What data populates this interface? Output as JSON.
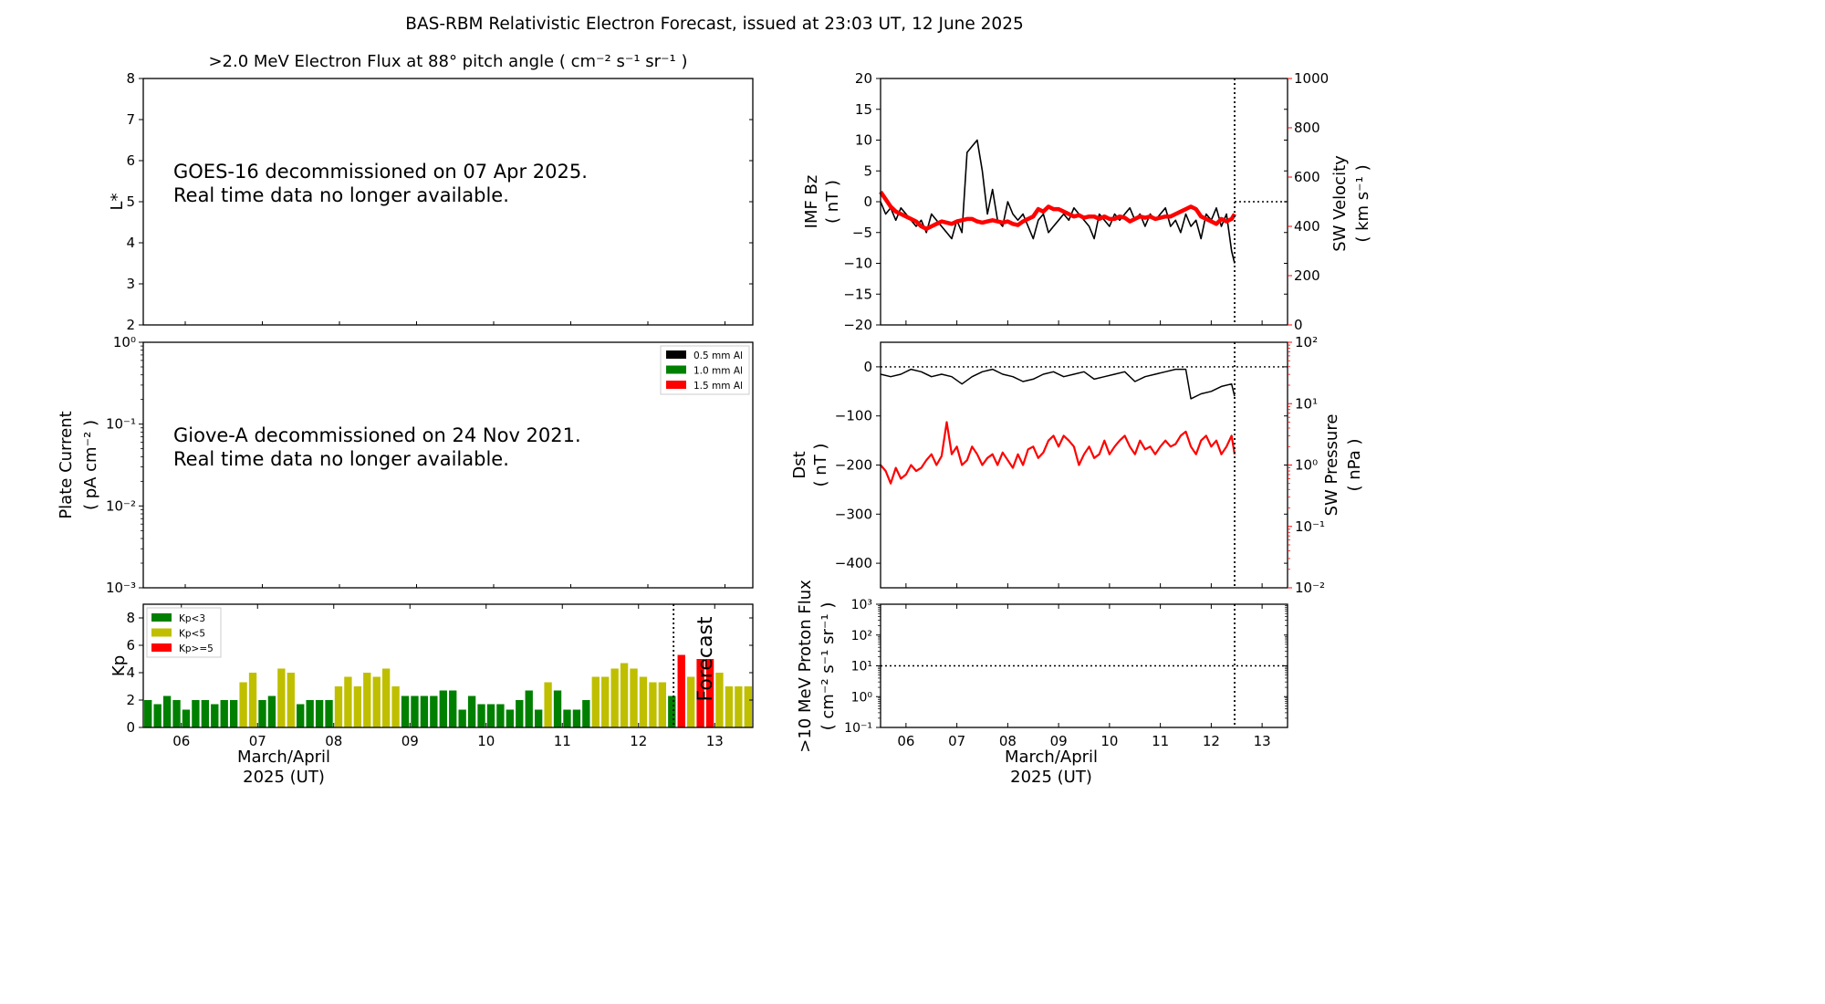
{
  "figure": {
    "title": "BAS-RBM Relativistic Electron Forecast, issued at 23:03 UT, 12 June 2025"
  },
  "chart_data": [
    {
      "id": "electron_flux",
      "type": "heatmap",
      "title": ">2.0 MeV Electron Flux at 88° pitch angle ( cm⁻² s⁻¹ sr⁻¹ )",
      "ylabel": "L*",
      "ylim": [
        2,
        8
      ],
      "yticks": [
        2,
        3,
        4,
        5,
        6,
        7,
        8
      ],
      "notice": [
        "GOES-16 decommissioned on 07 Apr 2025.",
        "Real time data no longer available."
      ]
    },
    {
      "id": "plate_current",
      "type": "line",
      "ylabel": [
        "Plate Current",
        "( pA cm⁻² )"
      ],
      "yscale": "log",
      "ylim": [
        0.001,
        1
      ],
      "yticks": [
        "10⁻³",
        "10⁻²",
        "10⁻¹",
        "10⁰"
      ],
      "legend": [
        {
          "label": "0.5 mm Al",
          "color": "#000000"
        },
        {
          "label": "1.0 mm Al",
          "color": "#008000"
        },
        {
          "label": "1.5 mm Al",
          "color": "#ff0000"
        }
      ],
      "legend_position": "top-right",
      "notice": [
        "Giove-A decommissioned on 24 Nov 2021.",
        "Real time data no longer available."
      ]
    },
    {
      "id": "kp",
      "type": "bar",
      "ylabel": "Kp",
      "ylim": [
        0,
        9
      ],
      "yticks": [
        0,
        2,
        4,
        6,
        8
      ],
      "xlim_days": [
        5.5,
        13.5
      ],
      "xticks": [
        "06",
        "07",
        "08",
        "09",
        "10",
        "11",
        "12",
        "13"
      ],
      "xlabel": [
        "March/April",
        "2025 (UT)"
      ],
      "now_day": 12.46,
      "forecast_label": "Forecast",
      "legend": [
        {
          "label": "Kp<3",
          "color": "#008000"
        },
        {
          "label": "Kp<5",
          "color": "#bfbf00"
        },
        {
          "label": "Kp>=5",
          "color": "#ff0000"
        }
      ],
      "legend_position": "top-left",
      "bar_width_days": 0.1,
      "bars": [
        {
          "day": 5.5625,
          "kp": 2.0
        },
        {
          "day": 5.6875,
          "kp": 1.7
        },
        {
          "day": 5.8125,
          "kp": 2.3
        },
        {
          "day": 5.9375,
          "kp": 2.0
        },
        {
          "day": 6.0625,
          "kp": 1.3
        },
        {
          "day": 6.1875,
          "kp": 2.0
        },
        {
          "day": 6.3125,
          "kp": 2.0
        },
        {
          "day": 6.4375,
          "kp": 1.7
        },
        {
          "day": 6.5625,
          "kp": 2.0
        },
        {
          "day": 6.6875,
          "kp": 2.0
        },
        {
          "day": 6.8125,
          "kp": 3.3
        },
        {
          "day": 6.9375,
          "kp": 4.0
        },
        {
          "day": 7.0625,
          "kp": 2.0
        },
        {
          "day": 7.1875,
          "kp": 2.3
        },
        {
          "day": 7.3125,
          "kp": 4.3
        },
        {
          "day": 7.4375,
          "kp": 4.0
        },
        {
          "day": 7.5625,
          "kp": 1.7
        },
        {
          "day": 7.6875,
          "kp": 2.0
        },
        {
          "day": 7.8125,
          "kp": 2.0
        },
        {
          "day": 7.9375,
          "kp": 2.0
        },
        {
          "day": 8.0625,
          "kp": 3.0
        },
        {
          "day": 8.1875,
          "kp": 3.7
        },
        {
          "day": 8.3125,
          "kp": 3.0
        },
        {
          "day": 8.4375,
          "kp": 4.0
        },
        {
          "day": 8.5625,
          "kp": 3.7
        },
        {
          "day": 8.6875,
          "kp": 4.3
        },
        {
          "day": 8.8125,
          "kp": 3.0
        },
        {
          "day": 8.9375,
          "kp": 2.3
        },
        {
          "day": 9.0625,
          "kp": 2.3
        },
        {
          "day": 9.1875,
          "kp": 2.3
        },
        {
          "day": 9.3125,
          "kp": 2.3
        },
        {
          "day": 9.4375,
          "kp": 2.7
        },
        {
          "day": 9.5625,
          "kp": 2.7
        },
        {
          "day": 9.6875,
          "kp": 1.3
        },
        {
          "day": 9.8125,
          "kp": 2.3
        },
        {
          "day": 9.9375,
          "kp": 1.7
        },
        {
          "day": 10.0625,
          "kp": 1.7
        },
        {
          "day": 10.1875,
          "kp": 1.7
        },
        {
          "day": 10.3125,
          "kp": 1.3
        },
        {
          "day": 10.4375,
          "kp": 2.0
        },
        {
          "day": 10.5625,
          "kp": 2.7
        },
        {
          "day": 10.6875,
          "kp": 1.3
        },
        {
          "day": 10.8125,
          "kp": 3.3
        },
        {
          "day": 10.9375,
          "kp": 2.7
        },
        {
          "day": 11.0625,
          "kp": 1.3
        },
        {
          "day": 11.1875,
          "kp": 1.3
        },
        {
          "day": 11.3125,
          "kp": 2.0
        },
        {
          "day": 11.4375,
          "kp": 3.7
        },
        {
          "day": 11.5625,
          "kp": 3.7
        },
        {
          "day": 11.6875,
          "kp": 4.3
        },
        {
          "day": 11.8125,
          "kp": 4.7
        },
        {
          "day": 11.9375,
          "kp": 4.3
        },
        {
          "day": 12.0625,
          "kp": 3.7
        },
        {
          "day": 12.1875,
          "kp": 3.3
        },
        {
          "day": 12.3125,
          "kp": 3.3
        },
        {
          "day": 12.4375,
          "kp": 2.3
        },
        {
          "day": 12.5625,
          "kp": 5.3
        },
        {
          "day": 12.6875,
          "kp": 3.7
        },
        {
          "day": 12.8125,
          "kp": 5.0
        },
        {
          "day": 12.9375,
          "kp": 5.0
        },
        {
          "day": 13.0625,
          "kp": 4.0
        },
        {
          "day": 13.1875,
          "kp": 3.0
        },
        {
          "day": 13.3125,
          "kp": 3.0
        },
        {
          "day": 13.4375,
          "kp": 3.0
        }
      ]
    },
    {
      "id": "imf_sw_velocity",
      "type": "line",
      "ylabel_left": [
        "IMF Bz",
        "( nT )"
      ],
      "ylim_left": [
        -20,
        20
      ],
      "yticks_left": [
        -20,
        -15,
        -10,
        -5,
        0,
        5,
        10,
        15,
        20
      ],
      "ylabel_right": [
        "SW Velocity",
        "( km s⁻¹ )"
      ],
      "ylim_right": [
        0,
        1000
      ],
      "yticks_right": [
        0,
        200,
        400,
        600,
        800,
        1000
      ],
      "xlim_days": [
        5.5,
        13.5
      ],
      "now_day": 12.46,
      "zero_line": 0,
      "series": [
        {
          "axis": "left",
          "color": "#000000",
          "x": [
            5.5,
            5.6,
            5.7,
            5.8,
            5.9,
            6.0,
            6.1,
            6.2,
            6.3,
            6.4,
            6.5,
            6.6,
            6.7,
            6.8,
            6.9,
            7.0,
            7.1,
            7.2,
            7.3,
            7.4,
            7.5,
            7.6,
            7.7,
            7.8,
            7.9,
            8.0,
            8.1,
            8.2,
            8.3,
            8.4,
            8.5,
            8.6,
            8.7,
            8.8,
            8.9,
            9.0,
            9.1,
            9.2,
            9.3,
            9.4,
            9.5,
            9.6,
            9.7,
            9.8,
            9.9,
            10.0,
            10.1,
            10.2,
            10.3,
            10.4,
            10.5,
            10.6,
            10.7,
            10.8,
            10.9,
            11.0,
            11.1,
            11.2,
            11.3,
            11.4,
            11.5,
            11.6,
            11.7,
            11.8,
            11.9,
            12.0,
            12.1,
            12.2,
            12.3,
            12.4,
            12.46
          ],
          "y": [
            0,
            -2,
            -1,
            -3,
            -1,
            -2,
            -3,
            -4,
            -3,
            -5,
            -2,
            -3,
            -4,
            -5,
            -6,
            -3,
            -5,
            8,
            9,
            10,
            5,
            -2,
            2,
            -3,
            -4,
            0,
            -2,
            -3,
            -2,
            -4,
            -6,
            -3,
            -2,
            -5,
            -4,
            -3,
            -2,
            -3,
            -1,
            -2,
            -3,
            -4,
            -6,
            -2,
            -3,
            -4,
            -2,
            -3,
            -2,
            -1,
            -3,
            -2,
            -4,
            -2,
            -3,
            -2,
            -1,
            -4,
            -3,
            -5,
            -2,
            -4,
            -3,
            -6,
            -2,
            -3,
            -1,
            -4,
            -2,
            -8,
            -10
          ]
        },
        {
          "axis": "right",
          "color": "#ff0000",
          "x": [
            5.5,
            5.6,
            5.7,
            5.8,
            5.9,
            6.0,
            6.1,
            6.2,
            6.3,
            6.4,
            6.5,
            6.6,
            6.7,
            6.8,
            6.9,
            7.0,
            7.1,
            7.2,
            7.3,
            7.4,
            7.5,
            7.6,
            7.7,
            7.8,
            7.9,
            8.0,
            8.1,
            8.2,
            8.3,
            8.4,
            8.5,
            8.6,
            8.7,
            8.8,
            8.9,
            9.0,
            9.1,
            9.2,
            9.3,
            9.4,
            9.5,
            9.6,
            9.7,
            9.8,
            9.9,
            10.0,
            10.1,
            10.2,
            10.3,
            10.4,
            10.5,
            10.6,
            10.7,
            10.8,
            10.9,
            11.0,
            11.1,
            11.2,
            11.3,
            11.4,
            11.5,
            11.6,
            11.7,
            11.8,
            11.9,
            12.0,
            12.1,
            12.2,
            12.3,
            12.4,
            12.46
          ],
          "y": [
            540,
            510,
            480,
            460,
            450,
            440,
            430,
            420,
            400,
            390,
            400,
            410,
            420,
            415,
            410,
            420,
            425,
            430,
            430,
            420,
            415,
            420,
            425,
            420,
            415,
            420,
            410,
            405,
            420,
            430,
            440,
            470,
            460,
            480,
            470,
            470,
            460,
            450,
            440,
            445,
            435,
            440,
            440,
            430,
            440,
            430,
            430,
            440,
            435,
            420,
            430,
            440,
            435,
            440,
            430,
            435,
            440,
            440,
            450,
            460,
            470,
            480,
            470,
            440,
            430,
            420,
            410,
            430,
            420,
            430,
            450
          ]
        }
      ]
    },
    {
      "id": "dst_sw_pressure",
      "type": "line",
      "ylabel_left": [
        "Dst",
        "( nT )"
      ],
      "ylim_left": [
        -450,
        50
      ],
      "yticks_left": [
        -400,
        -300,
        -200,
        -100,
        0
      ],
      "ylabel_right": [
        "SW Pressure",
        "( nPa )"
      ],
      "yscale_right": "log",
      "ylim_right": [
        0.01,
        100
      ],
      "yticks_right": [
        "10⁻²",
        "10⁻¹",
        "10⁰",
        "10¹",
        "10²"
      ],
      "xlim_days": [
        5.5,
        13.5
      ],
      "now_day": 12.46,
      "zero_line": 0,
      "series": [
        {
          "axis": "left",
          "color": "#000000",
          "x": [
            5.5,
            5.7,
            5.9,
            6.1,
            6.3,
            6.5,
            6.7,
            6.9,
            7.1,
            7.3,
            7.5,
            7.7,
            7.9,
            8.1,
            8.3,
            8.5,
            8.7,
            8.9,
            9.1,
            9.3,
            9.5,
            9.7,
            9.9,
            10.1,
            10.3,
            10.5,
            10.7,
            10.9,
            11.1,
            11.3,
            11.5,
            11.6,
            11.8,
            12.0,
            12.2,
            12.4,
            12.46
          ],
          "y": [
            -15,
            -20,
            -15,
            -5,
            -10,
            -20,
            -15,
            -20,
            -35,
            -20,
            -10,
            -5,
            -15,
            -20,
            -30,
            -25,
            -15,
            -10,
            -20,
            -15,
            -10,
            -25,
            -20,
            -15,
            -10,
            -30,
            -20,
            -15,
            -10,
            -5,
            -5,
            -65,
            -55,
            -50,
            -40,
            -35,
            -60
          ]
        },
        {
          "axis": "right",
          "color": "#ff0000",
          "x": [
            5.5,
            5.6,
            5.7,
            5.8,
            5.9,
            6.0,
            6.1,
            6.2,
            6.3,
            6.4,
            6.5,
            6.6,
            6.7,
            6.8,
            6.9,
            7.0,
            7.1,
            7.2,
            7.3,
            7.4,
            7.5,
            7.6,
            7.7,
            7.8,
            7.9,
            8.0,
            8.1,
            8.2,
            8.3,
            8.4,
            8.5,
            8.6,
            8.7,
            8.8,
            8.9,
            9.0,
            9.1,
            9.2,
            9.3,
            9.4,
            9.5,
            9.6,
            9.7,
            9.8,
            9.9,
            10.0,
            10.1,
            10.2,
            10.3,
            10.4,
            10.5,
            10.6,
            10.7,
            10.8,
            10.9,
            11.0,
            11.1,
            11.2,
            11.3,
            11.4,
            11.5,
            11.6,
            11.7,
            11.8,
            11.9,
            12.0,
            12.1,
            12.2,
            12.3,
            12.4,
            12.46
          ],
          "y": [
            1.0,
            0.8,
            0.5,
            0.9,
            0.6,
            0.7,
            1.0,
            0.8,
            0.9,
            1.2,
            1.5,
            1.0,
            1.4,
            5.0,
            1.5,
            2.0,
            1.0,
            1.2,
            2.0,
            1.5,
            1.0,
            1.3,
            1.5,
            1.0,
            1.6,
            1.2,
            0.9,
            1.5,
            1.0,
            1.8,
            2.0,
            1.3,
            1.6,
            2.5,
            3.0,
            2.0,
            3.0,
            2.5,
            2.0,
            1.0,
            1.5,
            2.0,
            1.3,
            1.5,
            2.5,
            1.5,
            2.0,
            2.5,
            3.0,
            2.0,
            1.5,
            2.5,
            1.8,
            2.0,
            1.5,
            2.0,
            2.5,
            2.0,
            2.2,
            3.0,
            3.5,
            2.0,
            1.5,
            2.5,
            3.0,
            2.0,
            2.5,
            1.5,
            2.0,
            3.0,
            1.5
          ]
        }
      ]
    },
    {
      "id": "proton_flux",
      "type": "line",
      "ylabel": [
        ">10 MeV Proton Flux",
        "( cm⁻² s⁻¹ sr⁻¹ )"
      ],
      "yscale": "log",
      "ylim": [
        0.1,
        1000
      ],
      "yticks": [
        "10⁻¹",
        "10⁰",
        "10¹",
        "10²",
        "10³"
      ],
      "threshold": 10,
      "xlim_days": [
        5.5,
        13.5
      ],
      "xticks": [
        "06",
        "07",
        "08",
        "09",
        "10",
        "11",
        "12",
        "13"
      ],
      "xlabel": [
        "March/April",
        "2025 (UT)"
      ],
      "now_day": 12.46
    }
  ]
}
